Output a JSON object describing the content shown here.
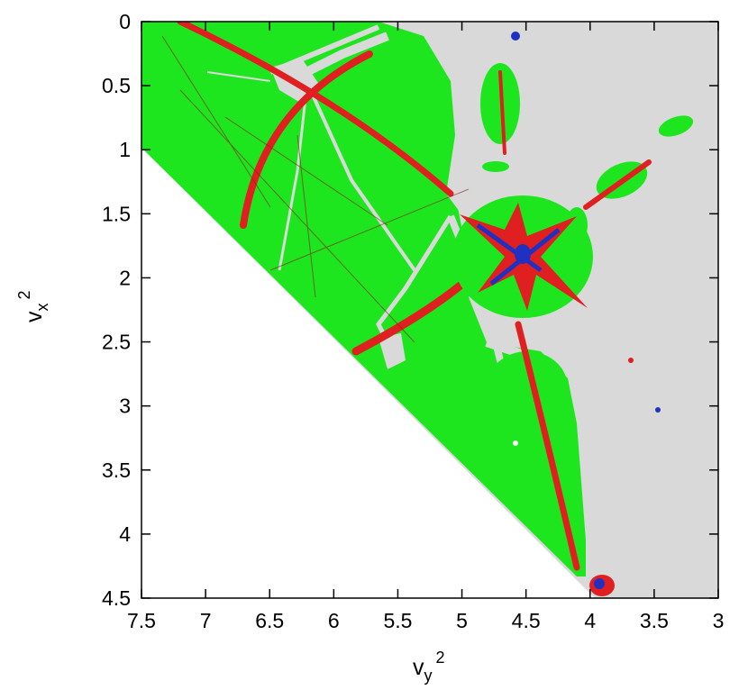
{
  "chart_data": {
    "type": "heatmap",
    "title": "",
    "xlabel": "v",
    "xlabel_subscript": "y",
    "xlabel_superscript": "2",
    "ylabel": "v",
    "ylabel_subscript": "x",
    "ylabel_superscript": "2",
    "xlim": [
      7.5,
      3
    ],
    "ylim": [
      0,
      4.5
    ],
    "x_reversed": true,
    "y_reversed": true,
    "xticks": [
      "7.5",
      "7",
      "6.5",
      "6",
      "5.5",
      "5",
      "4.5",
      "4",
      "3.5",
      "3"
    ],
    "yticks": [
      "0",
      "0.5",
      "1",
      "1.5",
      "2",
      "2.5",
      "3",
      "3.5",
      "4",
      "4.5"
    ],
    "grid": false,
    "legend": "none",
    "colors": {
      "background_region": "#d9d9d9",
      "green_region": "#1ee61e",
      "red_region": "#e02020",
      "blue_region": "#2030c0",
      "empty_region": "#ffffff"
    }
  }
}
